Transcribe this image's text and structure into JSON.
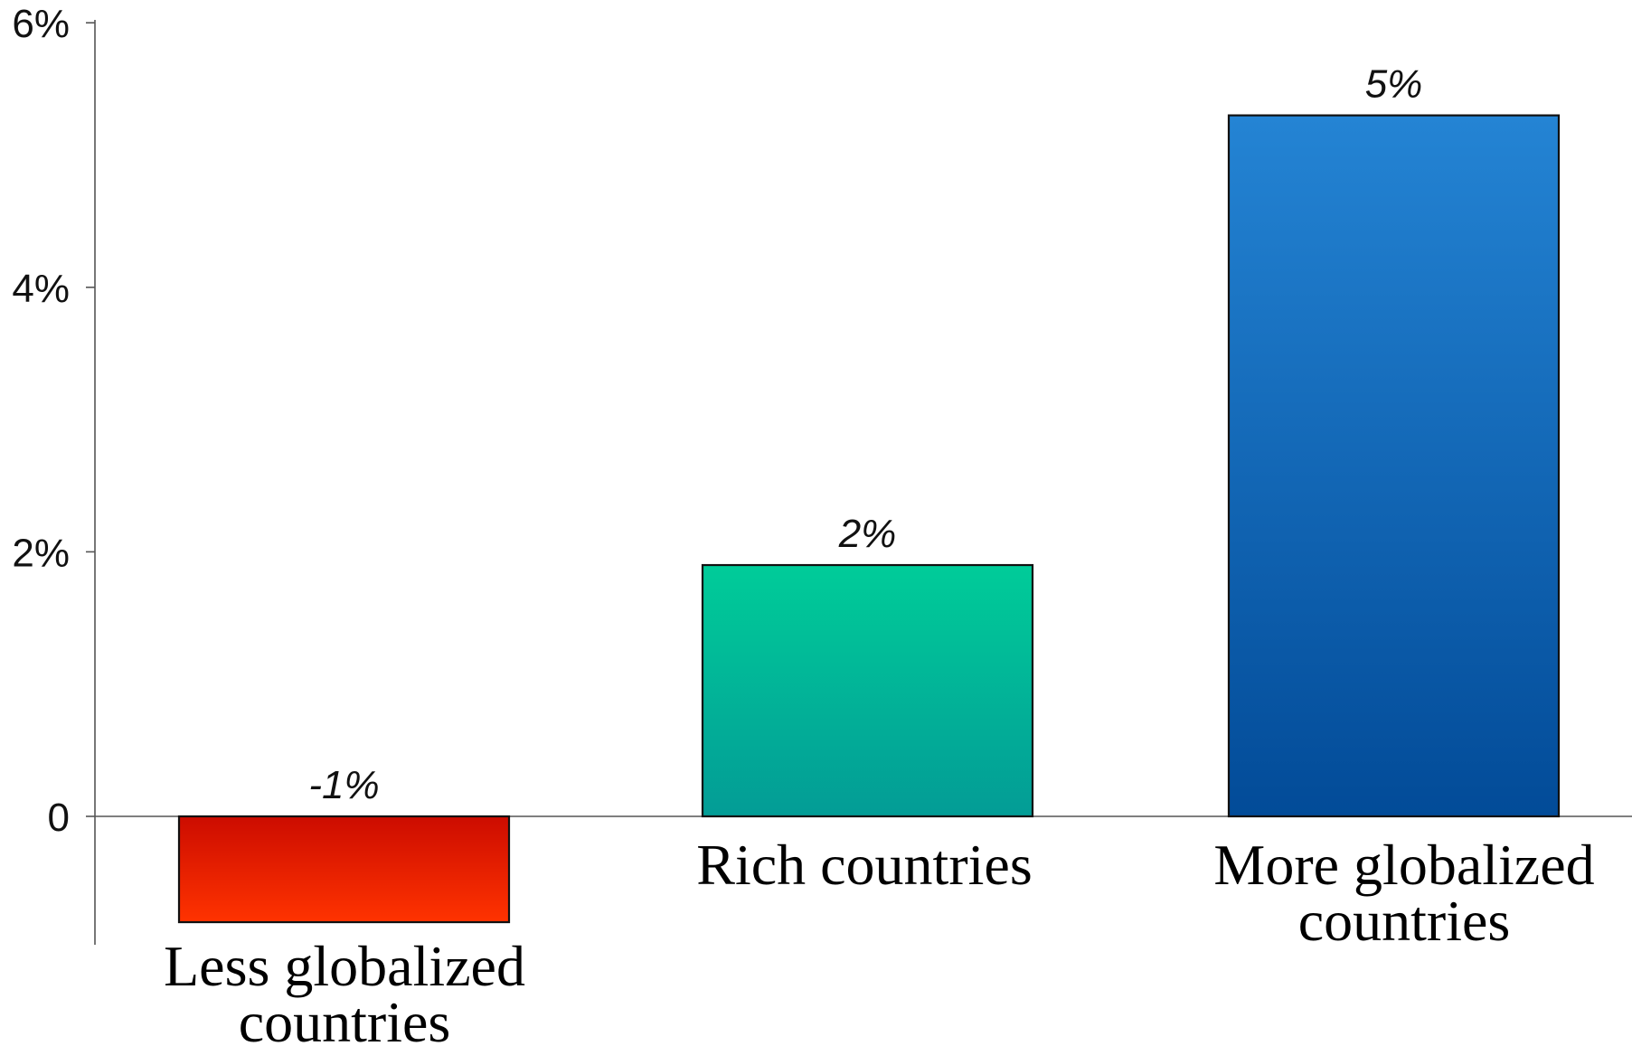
{
  "chart_data": {
    "type": "bar",
    "categories": [
      [
        "Less globalized",
        "countries"
      ],
      [
        "Rich countries"
      ],
      [
        "More globalized",
        "countries"
      ]
    ],
    "values": [
      -0.8,
      1.9,
      5.3
    ],
    "value_labels": [
      "-1%",
      "2%",
      "5%"
    ],
    "yticks": [
      {
        "value": 0,
        "label": "0"
      },
      {
        "value": 2,
        "label": "2%"
      },
      {
        "value": 4,
        "label": "4%"
      },
      {
        "value": 6,
        "label": "6%"
      }
    ],
    "ylim": [
      -1,
      6
    ],
    "grid": false,
    "legend": "none",
    "bar_colors": [
      {
        "top": "#cc0c00",
        "bottom": "#ff3300"
      },
      {
        "top": "#00cc99",
        "bottom": "#039c96"
      },
      {
        "top": "#2484d4",
        "bottom": "#024b98"
      }
    ]
  }
}
